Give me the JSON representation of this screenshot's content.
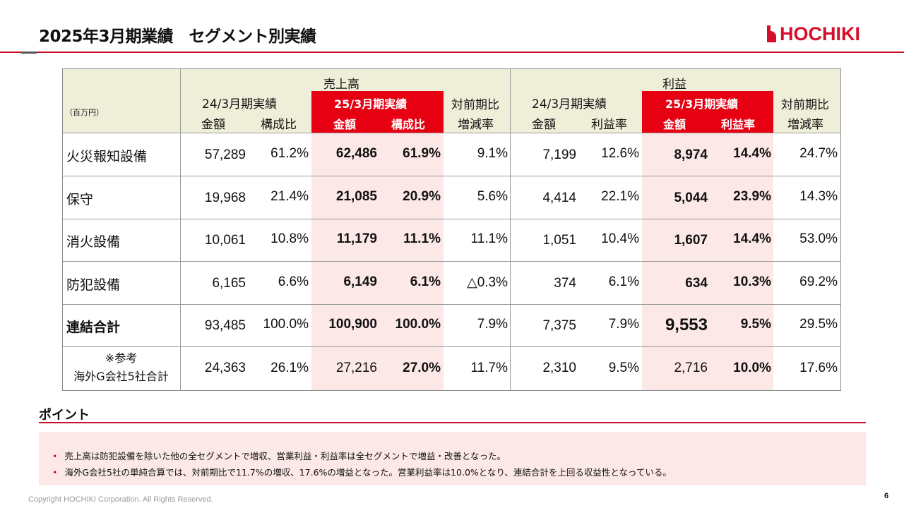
{
  "page": {
    "title": "2025年3月期業績　セグメント別実績",
    "logo_text": "HOCHIKI",
    "copyright": "Copyright HOCHIKI Corporation. All Rights Reserved.",
    "page_number": "6"
  },
  "table": {
    "unit": "（百万円）",
    "group_sales": "売上高",
    "group_profit": "利益",
    "prev_year": "24/3月期実績",
    "curr_year": "25/3月期実績",
    "yoy_1": "対前期比",
    "yoy_2": "増減率",
    "amount": "金額",
    "composition": "構成比",
    "profit_rate": "利益率",
    "rows": [
      {
        "label": "火災報知設備",
        "s_prev": "57,289",
        "s_prev_pct": "61.2%",
        "s_curr": "62,486",
        "s_curr_pct": "61.9%",
        "s_yoy": "9.1%",
        "p_prev": "7,199",
        "p_prev_pct": "12.6%",
        "p_curr": "8,974",
        "p_curr_pct": "14.4%",
        "p_yoy": "24.7%"
      },
      {
        "label": "保守",
        "s_prev": "19,968",
        "s_prev_pct": "21.4%",
        "s_curr": "21,085",
        "s_curr_pct": "20.9%",
        "s_yoy": "5.6%",
        "p_prev": "4,414",
        "p_prev_pct": "22.1%",
        "p_curr": "5,044",
        "p_curr_pct": "23.9%",
        "p_yoy": "14.3%"
      },
      {
        "label": "消火設備",
        "s_prev": "10,061",
        "s_prev_pct": "10.8%",
        "s_curr": "11,179",
        "s_curr_pct": "11.1%",
        "s_yoy": "11.1%",
        "p_prev": "1,051",
        "p_prev_pct": "10.4%",
        "p_curr": "1,607",
        "p_curr_pct": "14.4%",
        "p_yoy": "53.0%"
      },
      {
        "label": "防犯設備",
        "s_prev": "6,165",
        "s_prev_pct": "6.6%",
        "s_curr": "6,149",
        "s_curr_pct": "6.1%",
        "s_yoy": "△0.3%",
        "p_prev": "374",
        "p_prev_pct": "6.1%",
        "p_curr": "634",
        "p_curr_pct": "10.3%",
        "p_yoy": "69.2%"
      },
      {
        "label": "連結合計",
        "s_prev": "93,485",
        "s_prev_pct": "100.0%",
        "s_curr": "100,900",
        "s_curr_pct": "100.0%",
        "s_yoy": "7.9%",
        "p_prev": "7,375",
        "p_prev_pct": "7.9%",
        "p_curr": "9,553",
        "p_curr_pct": "9.5%",
        "p_yoy": "29.5%"
      },
      {
        "label_1": "※参考",
        "label_2": "海外G会社5社合計",
        "s_prev": "24,363",
        "s_prev_pct": "26.1%",
        "s_curr": "27,216",
        "s_curr_pct": "27.0%",
        "s_yoy": "11.7%",
        "p_prev": "2,310",
        "p_prev_pct": "9.5%",
        "p_curr": "2,716",
        "p_curr_pct": "10.0%",
        "p_yoy": "17.6%"
      }
    ]
  },
  "points": {
    "title": "ポイント",
    "bullet_char": "•",
    "items": [
      "売上高は防犯設備を除いた他の全セグメントで増収、営業利益・利益率は全セグメントで増益・改善となった。",
      "海外G会社5社の単純合算では、対前期比で11.7%の増収、17.6%の増益となった。営業利益率は10.0%となり、連結合計を上回る収益性となっている。"
    ]
  },
  "colors": {
    "accent_red": "#e60012",
    "highlight_pink": "#fde8e8",
    "header_beige": "#efefd9"
  }
}
